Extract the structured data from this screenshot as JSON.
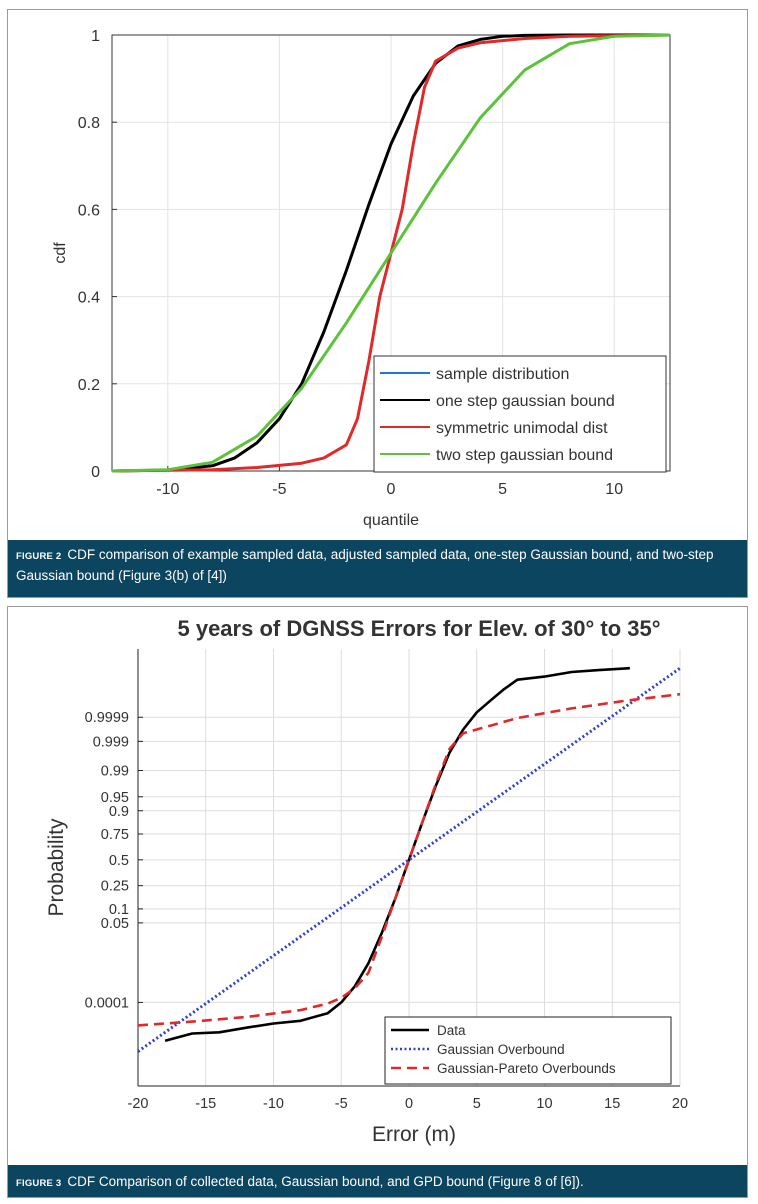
{
  "figures": [
    {
      "caption_label": "FIGURE 2",
      "caption_text": "CDF comparison of example sampled data, adjusted sampled data, one-step Gaussian bound, and two-step Gaussian bound (Figure 3(b) of [4])"
    },
    {
      "caption_label": "FIGURE 3",
      "caption_text": "CDF Comparison of collected data, Gaussian bound, and GPD bound (Figure 8 of [6])."
    }
  ],
  "chart_data": [
    {
      "type": "line",
      "title": "",
      "xlabel": "quantile",
      "ylabel": "cdf",
      "xlim": [
        -12.5,
        12.5
      ],
      "ylim": [
        0,
        1
      ],
      "grid": true,
      "legend_position": "bottom-right",
      "x_ticks": [
        -10,
        -5,
        0,
        5,
        10
      ],
      "x_tick_labels": [
        "-10",
        "-5",
        "0",
        "5",
        "10"
      ],
      "y_ticks": [
        0,
        0.2,
        0.4,
        0.6,
        0.8,
        1
      ],
      "y_tick_labels": [
        "0",
        "0.2",
        "0.4",
        "0.6",
        "0.8",
        "1"
      ],
      "series": [
        {
          "name": "sample distribution",
          "color": "#1f77d4",
          "x": [],
          "y": []
        },
        {
          "name": "one step gaussian bound",
          "color": "#000000",
          "x": [
            -12.5,
            -10,
            -8,
            -7,
            -6,
            -5,
            -4,
            -3,
            -2,
            -1,
            0,
            1,
            2,
            3,
            4,
            5,
            6,
            8,
            12.5
          ],
          "y": [
            0.0,
            0.002,
            0.012,
            0.03,
            0.065,
            0.12,
            0.2,
            0.32,
            0.46,
            0.61,
            0.75,
            0.86,
            0.935,
            0.975,
            0.99,
            0.997,
            0.999,
            1.0,
            1.0
          ]
        },
        {
          "name": "symmetric unimodal dist",
          "color": "#e02a2a",
          "x": [
            -12.5,
            -8,
            -6,
            -4,
            -3,
            -2,
            -1.5,
            -1,
            -0.5,
            0,
            0.5,
            1,
            1.5,
            2,
            3,
            4,
            6,
            8,
            12.5
          ],
          "y": [
            0.0,
            0.003,
            0.008,
            0.018,
            0.03,
            0.06,
            0.12,
            0.25,
            0.4,
            0.5,
            0.6,
            0.75,
            0.88,
            0.94,
            0.97,
            0.982,
            0.992,
            0.997,
            1.0
          ]
        },
        {
          "name": "two step gaussian bound",
          "color": "#5cc23c",
          "x": [
            -12.5,
            -10,
            -8,
            -6,
            -4,
            -2,
            0,
            2,
            4,
            6,
            8,
            10,
            12.5
          ],
          "y": [
            0.0,
            0.003,
            0.02,
            0.08,
            0.19,
            0.34,
            0.5,
            0.66,
            0.81,
            0.92,
            0.98,
            0.997,
            1.0
          ]
        }
      ]
    },
    {
      "type": "line",
      "title": "5 years of DGNSS Errors for Elev. of 30° to 35°",
      "xlabel": "Error (m)",
      "ylabel": "Probability",
      "xlim": [
        -20,
        20
      ],
      "grid": true,
      "legend_position": "bottom-right",
      "x_ticks": [
        -20,
        -15,
        -10,
        -5,
        0,
        5,
        10,
        15,
        20
      ],
      "x_tick_labels": [
        "-20",
        "-15",
        "-10",
        "-5",
        "0",
        "5",
        "10",
        "15",
        "20"
      ],
      "y_scale": "normal-probability",
      "y_tick_labels": [
        "0.0001",
        "0.05",
        "0.1",
        "0.25",
        "0.5",
        "0.75",
        "0.9",
        "0.95",
        "0.99",
        "0.999",
        "0.9999"
      ],
      "y_tick_positions_sigma": [
        -3.72,
        -1.645,
        -1.28,
        -0.674,
        0,
        0.674,
        1.28,
        1.645,
        2.33,
        3.09,
        3.72
      ],
      "y_sigma_range": [
        -5.9,
        5.5
      ],
      "series": [
        {
          "name": "Data",
          "color": "#000000",
          "style": "solid",
          "x": [
            -18,
            -16,
            -14,
            -12,
            -10,
            -8,
            -6,
            -5,
            -4,
            -3,
            -2,
            -1,
            0,
            1,
            2,
            3,
            4,
            5,
            6,
            7,
            8,
            10,
            12,
            14,
            16.3
          ],
          "sigma": [
            -4.72,
            -4.53,
            -4.5,
            -4.38,
            -4.27,
            -4.2,
            -4.0,
            -3.72,
            -3.3,
            -2.7,
            -1.9,
            -1.0,
            0.0,
            1.0,
            1.95,
            2.8,
            3.4,
            3.85,
            4.15,
            4.45,
            4.7,
            4.78,
            4.9,
            4.95,
            5.0
          ]
        },
        {
          "name": "Gaussian Overbound",
          "color": "#3340cc",
          "style": "dotted",
          "x": [
            -20,
            20
          ],
          "sigma": [
            -5.0,
            5.0
          ]
        },
        {
          "name": "Gaussian-Pareto Overbounds",
          "color": "#e02a2a",
          "style": "dashed",
          "x": [
            -20,
            -16,
            -12,
            -8,
            -6,
            -5,
            -4,
            -3,
            -2,
            -1,
            0,
            1,
            2,
            3,
            4,
            6,
            8,
            12,
            16,
            20
          ],
          "sigma": [
            -4.32,
            -4.22,
            -4.1,
            -3.92,
            -3.75,
            -3.6,
            -3.35,
            -2.95,
            -2.0,
            -1.0,
            0.0,
            1.0,
            2.0,
            2.9,
            3.3,
            3.5,
            3.7,
            3.95,
            4.15,
            4.32
          ]
        }
      ]
    }
  ]
}
